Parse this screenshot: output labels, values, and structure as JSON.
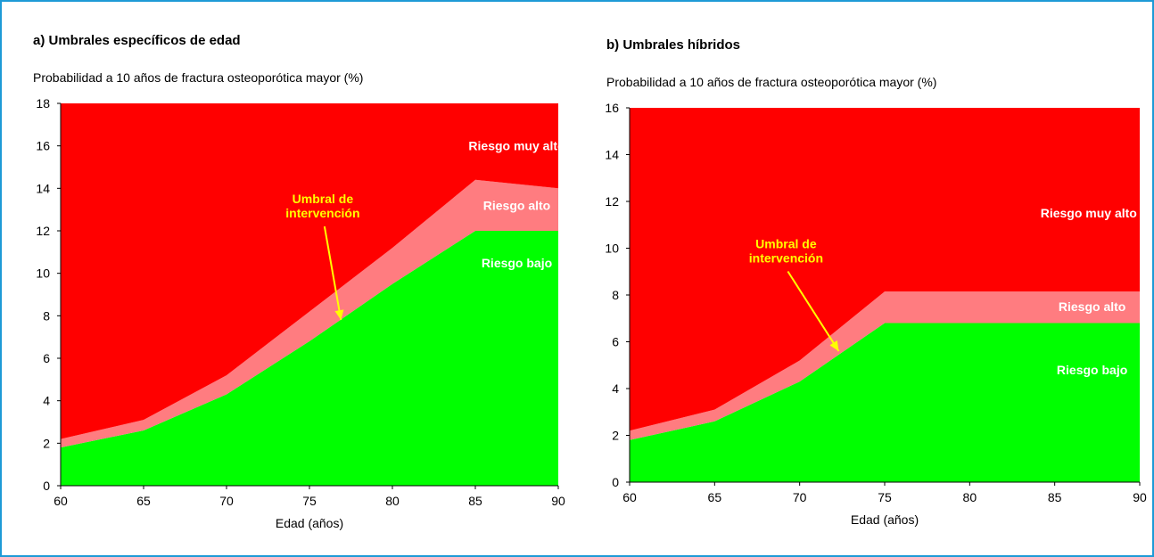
{
  "colors": {
    "frame": "#1e9ad6",
    "very_high": "#ff0000",
    "high": "#ff7c80",
    "low": "#00ff00",
    "zone_label": "#ffffff",
    "annotation": "#ffff00"
  },
  "chart_data": [
    {
      "type": "area",
      "title": "a) Umbrales específicos de edad",
      "ylabel": "Probabilidad a 10 años de fractura osteoporótica mayor (%)",
      "xlabel": "Edad (años)",
      "xlim": [
        60,
        90
      ],
      "ylim": [
        0,
        18
      ],
      "x_ticks": [
        60,
        65,
        70,
        75,
        80,
        85,
        90
      ],
      "y_ticks": [
        0,
        2,
        4,
        6,
        8,
        10,
        12,
        14,
        16,
        18
      ],
      "x": [
        60,
        65,
        70,
        75,
        80,
        85,
        90
      ],
      "series": [
        {
          "name": "Riesgo bajo",
          "values": [
            1.8,
            2.6,
            4.3,
            6.8,
            9.5,
            12.0,
            12.0
          ]
        },
        {
          "name": "Riesgo alto",
          "values": [
            2.2,
            3.1,
            5.2,
            8.2,
            11.2,
            14.4,
            14.0
          ]
        },
        {
          "name": "Riesgo muy alto",
          "values": [
            18,
            18,
            18,
            18,
            18,
            18,
            18
          ]
        }
      ],
      "annotations": [
        {
          "text": "Riesgo muy alto",
          "type": "zone",
          "x": 87.5,
          "y": 16.0
        },
        {
          "text": "Riesgo alto",
          "type": "zone",
          "x": 87.5,
          "y": 13.2
        },
        {
          "text": "Riesgo bajo",
          "type": "zone",
          "x": 87.5,
          "y": 10.5
        },
        {
          "text": "Umbral de intervención",
          "type": "arrow",
          "x": 75.8,
          "y": 13.3,
          "target_x": 76.9,
          "target_y": 7.8
        }
      ]
    },
    {
      "type": "area",
      "title": "b) Umbrales híbridos",
      "ylabel": "Probabilidad a 10 años de fractura osteoporótica mayor (%)",
      "xlabel": "Edad (años)",
      "xlim": [
        60,
        90
      ],
      "ylim": [
        0,
        16
      ],
      "x_ticks": [
        60,
        65,
        70,
        75,
        80,
        85,
        90
      ],
      "y_ticks": [
        0,
        2,
        4,
        6,
        8,
        10,
        12,
        14,
        16
      ],
      "x": [
        60,
        65,
        70,
        75,
        80,
        85,
        90
      ],
      "series": [
        {
          "name": "Riesgo bajo",
          "values": [
            1.8,
            2.6,
            4.3,
            6.8,
            6.8,
            6.8,
            6.8
          ]
        },
        {
          "name": "Riesgo alto",
          "values": [
            2.2,
            3.1,
            5.2,
            8.15,
            8.15,
            8.15,
            8.15
          ]
        },
        {
          "name": "Riesgo muy alto",
          "values": [
            16,
            16,
            16,
            16,
            16,
            16,
            16
          ]
        }
      ],
      "annotations": [
        {
          "text": "Riesgo muy alto",
          "type": "zone",
          "x": 87.0,
          "y": 11.5
        },
        {
          "text": "Riesgo alto",
          "type": "zone",
          "x": 87.2,
          "y": 7.5
        },
        {
          "text": "Riesgo bajo",
          "type": "zone",
          "x": 87.2,
          "y": 4.8
        },
        {
          "text": "Umbral de intervención",
          "type": "arrow",
          "x": 69.2,
          "y": 10.0,
          "target_x": 72.3,
          "target_y": 5.6
        }
      ]
    }
  ]
}
